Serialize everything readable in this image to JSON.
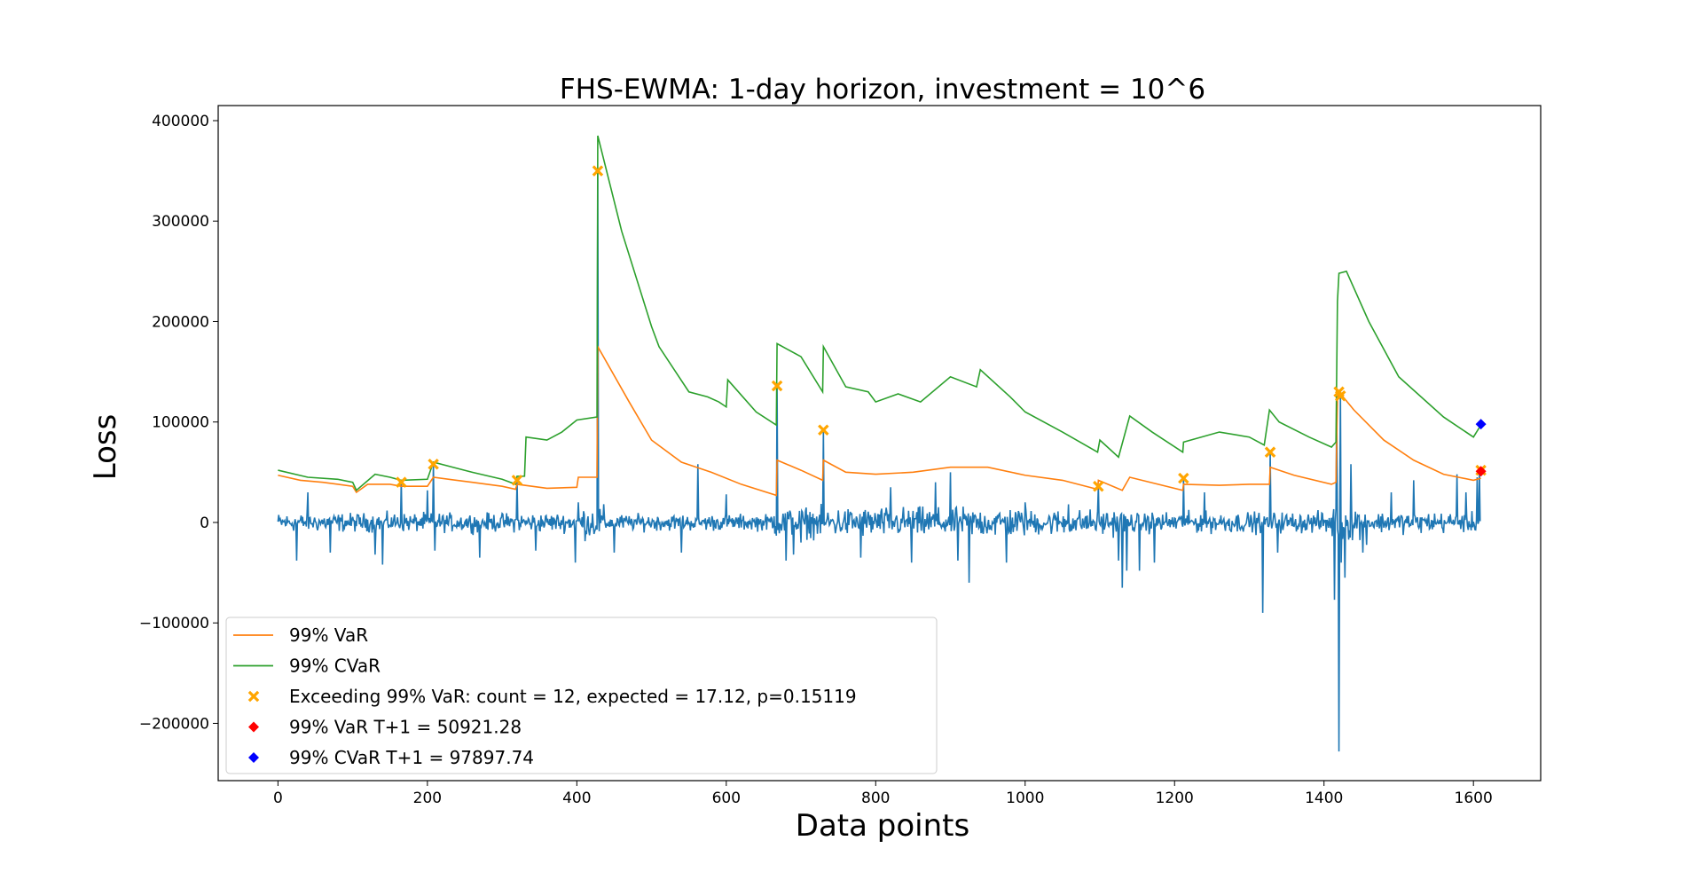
{
  "chart_data": {
    "type": "line",
    "title": "FHS-EWMA: 1-day horizon, investment = 10^6",
    "xlabel": "Data points",
    "ylabel": "Loss",
    "xlim": [
      -80,
      1690
    ],
    "ylim": [
      -257000,
      415000
    ],
    "xticks": [
      0,
      200,
      400,
      600,
      800,
      1000,
      1200,
      1400,
      1600
    ],
    "xtick_labels": [
      "0",
      "200",
      "400",
      "600",
      "800",
      "1000",
      "1200",
      "1400",
      "1600"
    ],
    "yticks": [
      -200000,
      -100000,
      0,
      100000,
      200000,
      300000,
      400000
    ],
    "ytick_labels": [
      "−200000",
      "−100000",
      "0",
      "100000",
      "200000",
      "300000",
      "400000"
    ],
    "grid": false,
    "legend_position": "lower-left",
    "colors": {
      "losses": "#1f77b4",
      "var": "#ff7f0e",
      "cvar": "#2ca02c",
      "exceed": "#ffa500",
      "var_next": "#ff0000",
      "cvar_next": "#0000ff"
    },
    "loss_series": {
      "name": "",
      "n": 1610,
      "spikes": [
        [
          25,
          -38000
        ],
        [
          40,
          30000
        ],
        [
          70,
          -30000
        ],
        [
          130,
          -32000
        ],
        [
          140,
          -42000
        ],
        [
          165,
          41000
        ],
        [
          200,
          32000
        ],
        [
          208,
          58000
        ],
        [
          210,
          -28000
        ],
        [
          270,
          -35000
        ],
        [
          320,
          42000
        ],
        [
          345,
          -28000
        ],
        [
          398,
          -40000
        ],
        [
          402,
          20000
        ],
        [
          428,
          350000
        ],
        [
          450,
          -30000
        ],
        [
          540,
          -30000
        ],
        [
          562,
          58000
        ],
        [
          600,
          28000
        ],
        [
          668,
          136000
        ],
        [
          680,
          -38000
        ],
        [
          690,
          -32000
        ],
        [
          700,
          -20000
        ],
        [
          730,
          92000
        ],
        [
          780,
          -35000
        ],
        [
          820,
          35000
        ],
        [
          848,
          -40000
        ],
        [
          880,
          40000
        ],
        [
          900,
          50000
        ],
        [
          910,
          -38000
        ],
        [
          925,
          -60000
        ],
        [
          975,
          -40000
        ],
        [
          1000,
          20000
        ],
        [
          1058,
          18000
        ],
        [
          1098,
          36000
        ],
        [
          1125,
          -38000
        ],
        [
          1130,
          -65000
        ],
        [
          1136,
          -48000
        ],
        [
          1153,
          -48000
        ],
        [
          1173,
          -40000
        ],
        [
          1212,
          44000
        ],
        [
          1240,
          30000
        ],
        [
          1318,
          -90000
        ],
        [
          1328,
          70000
        ],
        [
          1338,
          -30000
        ],
        [
          1414,
          -77000
        ],
        [
          1417,
          125000
        ],
        [
          1420,
          -228000
        ],
        [
          1422,
          130000
        ],
        [
          1423,
          -40000
        ],
        [
          1428,
          -55000
        ],
        [
          1436,
          58000
        ],
        [
          1452,
          -30000
        ],
        [
          1490,
          30000
        ],
        [
          1520,
          42000
        ],
        [
          1578,
          48000
        ],
        [
          1590,
          30000
        ],
        [
          1605,
          45000
        ],
        [
          1608,
          50000
        ]
      ]
    },
    "var_series": {
      "name": "99% VaR",
      "points": [
        [
          0,
          47000
        ],
        [
          30,
          42000
        ],
        [
          60,
          40000
        ],
        [
          100,
          36000
        ],
        [
          105,
          30000
        ],
        [
          120,
          38000
        ],
        [
          150,
          38000
        ],
        [
          165,
          36000
        ],
        [
          200,
          36000
        ],
        [
          208,
          45000
        ],
        [
          260,
          40000
        ],
        [
          300,
          36000
        ],
        [
          318,
          33000
        ],
        [
          320,
          38000
        ],
        [
          360,
          34000
        ],
        [
          400,
          35000
        ],
        [
          402,
          45000
        ],
        [
          427,
          45000
        ],
        [
          428,
          175000
        ],
        [
          470,
          120000
        ],
        [
          500,
          82000
        ],
        [
          540,
          60000
        ],
        [
          580,
          50000
        ],
        [
          620,
          38000
        ],
        [
          667,
          27000
        ],
        [
          668,
          62000
        ],
        [
          700,
          52000
        ],
        [
          729,
          42000
        ],
        [
          730,
          62000
        ],
        [
          760,
          50000
        ],
        [
          800,
          48000
        ],
        [
          850,
          50000
        ],
        [
          900,
          55000
        ],
        [
          950,
          55000
        ],
        [
          1000,
          47000
        ],
        [
          1050,
          42000
        ],
        [
          1097,
          33000
        ],
        [
          1098,
          42000
        ],
        [
          1130,
          32000
        ],
        [
          1140,
          45000
        ],
        [
          1211,
          32000
        ],
        [
          1212,
          38000
        ],
        [
          1260,
          37000
        ],
        [
          1300,
          38000
        ],
        [
          1327,
          38000
        ],
        [
          1328,
          55000
        ],
        [
          1360,
          47000
        ],
        [
          1410,
          38000
        ],
        [
          1416,
          40000
        ],
        [
          1418,
          123000
        ],
        [
          1420,
          130000
        ],
        [
          1440,
          112000
        ],
        [
          1480,
          82000
        ],
        [
          1520,
          62000
        ],
        [
          1560,
          48000
        ],
        [
          1600,
          42000
        ],
        [
          1610,
          44000
        ]
      ]
    },
    "cvar_series": {
      "name": "99% CVaR",
      "points": [
        [
          0,
          52000
        ],
        [
          40,
          45000
        ],
        [
          80,
          43000
        ],
        [
          100,
          40000
        ],
        [
          105,
          32000
        ],
        [
          130,
          48000
        ],
        [
          150,
          45000
        ],
        [
          165,
          42000
        ],
        [
          200,
          43000
        ],
        [
          208,
          60000
        ],
        [
          260,
          50000
        ],
        [
          300,
          43000
        ],
        [
          318,
          38000
        ],
        [
          320,
          46000
        ],
        [
          330,
          46000
        ],
        [
          332,
          85000
        ],
        [
          360,
          82000
        ],
        [
          380,
          90000
        ],
        [
          400,
          102000
        ],
        [
          427,
          105000
        ],
        [
          428,
          385000
        ],
        [
          460,
          290000
        ],
        [
          500,
          195000
        ],
        [
          510,
          175000
        ],
        [
          550,
          130000
        ],
        [
          575,
          125000
        ],
        [
          590,
          120000
        ],
        [
          600,
          115000
        ],
        [
          602,
          142000
        ],
        [
          640,
          110000
        ],
        [
          667,
          97000
        ],
        [
          668,
          178000
        ],
        [
          700,
          165000
        ],
        [
          729,
          130000
        ],
        [
          730,
          175000
        ],
        [
          760,
          135000
        ],
        [
          790,
          130000
        ],
        [
          800,
          120000
        ],
        [
          830,
          128000
        ],
        [
          860,
          120000
        ],
        [
          900,
          145000
        ],
        [
          935,
          135000
        ],
        [
          940,
          152000
        ],
        [
          980,
          125000
        ],
        [
          1000,
          110000
        ],
        [
          1050,
          90000
        ],
        [
          1097,
          70000
        ],
        [
          1100,
          82000
        ],
        [
          1125,
          65000
        ],
        [
          1140,
          106000
        ],
        [
          1170,
          90000
        ],
        [
          1211,
          70000
        ],
        [
          1212,
          80000
        ],
        [
          1260,
          90000
        ],
        [
          1300,
          85000
        ],
        [
          1320,
          77000
        ],
        [
          1327,
          112000
        ],
        [
          1340,
          100000
        ],
        [
          1380,
          85000
        ],
        [
          1410,
          75000
        ],
        [
          1416,
          80000
        ],
        [
          1418,
          220000
        ],
        [
          1420,
          248000
        ],
        [
          1430,
          250000
        ],
        [
          1460,
          200000
        ],
        [
          1500,
          145000
        ],
        [
          1560,
          105000
        ],
        [
          1600,
          85000
        ],
        [
          1610,
          97000
        ]
      ]
    },
    "exceedances": {
      "name": "Exceeding 99% VaR: count = 12, expected = 17.12, p=0.15119",
      "points": [
        [
          165,
          40000
        ],
        [
          208,
          58000
        ],
        [
          320,
          42000
        ],
        [
          428,
          350000
        ],
        [
          668,
          136000
        ],
        [
          730,
          92000
        ],
        [
          1098,
          36000
        ],
        [
          1212,
          44000
        ],
        [
          1328,
          70000
        ],
        [
          1420,
          130000
        ],
        [
          1422,
          126000
        ],
        [
          1610,
          52000
        ]
      ]
    },
    "var_next": {
      "name": "99% VaR T+1 = 50921.28",
      "x": 1610,
      "y": 50921.28
    },
    "cvar_next": {
      "name": "99% CVaR T+1 = 97897.74",
      "x": 1610,
      "y": 97897.74
    }
  }
}
